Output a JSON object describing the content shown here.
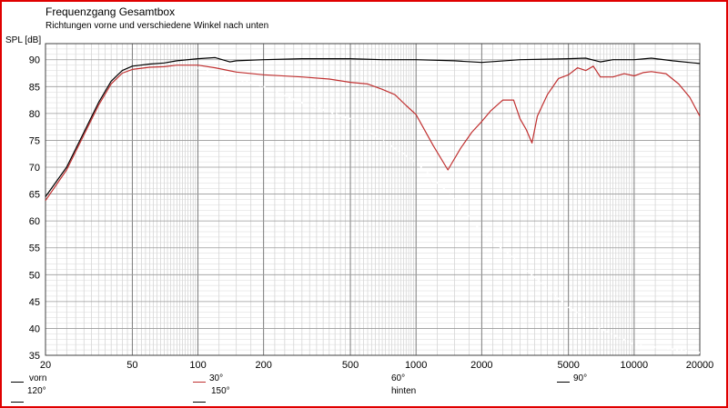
{
  "chart_data": {
    "type": "line",
    "title": "Frequenzgang Gesamtbox",
    "subtitle": "Richtungen vorne und verschiedene Winkel nach unten",
    "ylabel": "SPL [dB]",
    "xlabel": "",
    "x_scale": "log",
    "xlim": [
      20,
      20000
    ],
    "ylim": [
      35,
      93
    ],
    "x_ticks": [
      20,
      50,
      100,
      200,
      500,
      1000,
      2000,
      5000,
      10000,
      20000
    ],
    "x_tick_labels": [
      "20",
      "50",
      "100",
      "200",
      "500",
      "1000",
      "2000",
      "5000",
      "10000",
      "20000"
    ],
    "y_ticks": [
      35,
      40,
      45,
      50,
      55,
      60,
      65,
      70,
      75,
      80,
      85,
      90
    ],
    "grid": true,
    "legend_position": "bottom",
    "series": [
      {
        "name": "vorn",
        "color": "#000000",
        "x": [
          20,
          25,
          30,
          35,
          40,
          45,
          50,
          60,
          70,
          80,
          100,
          120,
          140,
          150,
          200,
          300,
          500,
          700,
          1000,
          1500,
          2000,
          3000,
          5000,
          6000,
          7000,
          8000,
          10000,
          12000,
          15000,
          20000
        ],
        "y": [
          64.5,
          70,
          76.5,
          82,
          86,
          88,
          88.8,
          89.2,
          89.4,
          89.8,
          90.2,
          90.4,
          89.6,
          89.8,
          90,
          90.2,
          90.2,
          90,
          90,
          89.8,
          89.5,
          90,
          90.2,
          90.3,
          89.6,
          90,
          90,
          90.3,
          89.8,
          89.3
        ]
      },
      {
        "name": "30°",
        "color": "#c03030",
        "x": [
          20,
          25,
          30,
          35,
          40,
          45,
          50,
          60,
          70,
          80,
          100,
          120,
          150,
          200,
          300,
          400,
          500,
          600,
          700,
          800,
          900,
          1000,
          1200,
          1400,
          1600,
          1800,
          2000,
          2200,
          2500,
          2800,
          3000,
          3200,
          3400,
          3600,
          4000,
          4500,
          5000,
          5500,
          6000,
          6500,
          7000,
          8000,
          9000,
          10000,
          11000,
          12000,
          14000,
          16000,
          18000,
          20000
        ],
        "y": [
          63.8,
          69.5,
          76,
          81.5,
          85.5,
          87.5,
          88.2,
          88.6,
          88.7,
          89,
          89,
          88.5,
          87.7,
          87.2,
          86.8,
          86.4,
          85.8,
          85.5,
          84.5,
          83.5,
          81.5,
          79.8,
          74,
          69.5,
          73.5,
          76.5,
          78.5,
          80.5,
          82.5,
          82.5,
          79,
          77,
          74.5,
          79.5,
          83.5,
          86.5,
          87.2,
          88.5,
          88,
          88.8,
          86.8,
          86.8,
          87.4,
          87,
          87.6,
          87.8,
          87.4,
          85.5,
          83,
          79.5
        ]
      },
      {
        "name": "60°",
        "color": "#ffffff",
        "x": [],
        "y": []
      },
      {
        "name": "90°",
        "color": "#ffffff",
        "x": [],
        "y": []
      },
      {
        "name": "120°",
        "color": "#ffffff",
        "x": [],
        "y": []
      },
      {
        "name": "150°",
        "color": "#ffffff",
        "x": [],
        "y": []
      },
      {
        "name": "hinten",
        "color": "#ffffff",
        "x": [],
        "y": []
      }
    ],
    "dotted_traces": [
      {
        "x": [
          100,
          200,
          300,
          500,
          700,
          1000,
          1500,
          2000,
          3000,
          5000,
          7000,
          10000,
          20000
        ],
        "y": [
          88.5,
          85,
          82,
          79,
          75,
          71,
          64,
          58,
          52,
          44,
          40,
          37,
          35.5
        ]
      }
    ]
  }
}
